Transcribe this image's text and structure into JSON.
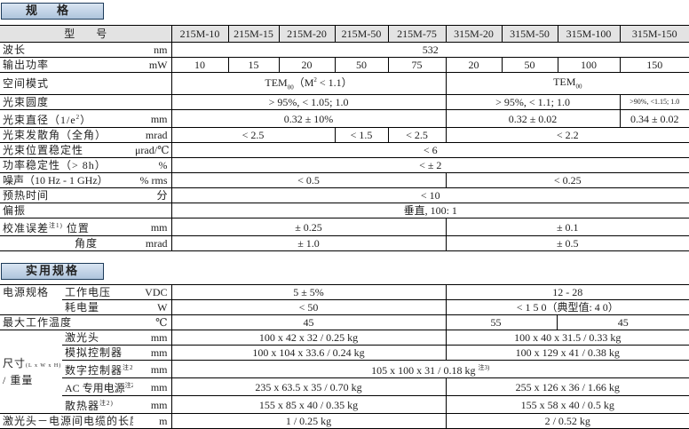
{
  "sections": {
    "spec": "规格",
    "practical": "实用规格"
  },
  "t1": {
    "header_label": "型　　号",
    "models": [
      "215M-10",
      "215M-15",
      "215M-20",
      "215M-50",
      "215M-75",
      "315M-20",
      "315M-50",
      "315M-100",
      "315M-150"
    ],
    "wavelength": {
      "label": "波长",
      "unit": "nm",
      "value": "532"
    },
    "power": {
      "label": "输出功率",
      "unit": "mW",
      "values": [
        "10",
        "15",
        "20",
        "50",
        "75",
        "20",
        "50",
        "100",
        "150"
      ]
    },
    "mode": {
      "label": "空间模式",
      "a_main": "TEM",
      "a_sub": "00",
      "a_rest": "（M",
      "a_sup": "2",
      "a_end": " < 1.1）",
      "b_main": "TEM",
      "b_sub": "00"
    },
    "roundness": {
      "label": "光束圆度",
      "a": "> 95%, < 1.05; 1.0",
      "b": "> 95%, < 1.1; 1.0",
      "c": ">90%, <1.15; 1.0"
    },
    "diameter": {
      "label": "光束直径（1/e",
      "sup": "2",
      "label_end": "）",
      "unit": "mm",
      "a": "0.32 ± 10%",
      "b": "0.32 ± 0.02",
      "c": "0.34 ± 0.02"
    },
    "divergence": {
      "label": "光束发散角（全角）",
      "unit": "mrad",
      "a": "< 2.5",
      "b": "< 1.5",
      "c": "< 2.5",
      "d": "< 2.2"
    },
    "pointing": {
      "label": "光束位置稳定性",
      "unit": "μrad/℃",
      "value": "< 6"
    },
    "stability": {
      "label": "功率稳定性（> 8h）",
      "unit": "%",
      "value": "< ± 2"
    },
    "noise": {
      "label": "噪声（10 Hz - 1 GHz）",
      "unit": "% rms",
      "a": "< 0.5",
      "b": "< 0.25"
    },
    "warmup": {
      "label": "预热时间",
      "unit": "分",
      "value": "< 10"
    },
    "polarization": {
      "label": "偏振",
      "value": "垂直, 100: 1"
    },
    "alignment": {
      "label": "校准误差",
      "note": "注1)",
      "pos_label": "位置",
      "pos_unit": "mm",
      "pos_a": "± 0.25",
      "pos_b": "± 0.1",
      "ang_label": "角度",
      "ang_unit": "mrad",
      "ang_a": "± 1.0",
      "ang_b": "± 0.5"
    }
  },
  "t2": {
    "power_supply": {
      "label": "电源规格",
      "voltage_label": "工作电压",
      "voltage_unit": "VDC",
      "voltage_a": "5 ± 5%",
      "voltage_b": "12 - 28",
      "consumption_label": "耗电量",
      "consumption_unit": "W",
      "consumption_a": "< 50",
      "consumption_b": "< 1 5 0（典型值: 4 0）"
    },
    "temp": {
      "label": "最大工作温度",
      "unit": "℃",
      "a": "45",
      "b": "55",
      "c": "45"
    },
    "size": {
      "label": "尺寸",
      "label_small": "(L x W x H)",
      "label2": "/ 重量",
      "head_label": "激光头",
      "head_unit": "mm",
      "head_a": "100 x 42 x 32 / 0.25 kg",
      "head_b": "100 x 40 x 31.5 / 0.33 kg",
      "analog_label": "模拟控制器",
      "analog_unit": "mm",
      "analog_a": "100 x 104 x 33.6 / 0.24 kg",
      "analog_b": "100 x 129 x 41 / 0.38 kg",
      "digital_label": "数字控制器",
      "digital_note": "注2)",
      "digital_unit": "mm",
      "digital_value": "105 x 100 x 31 / 0.18 kg",
      "digital_value_note": "注3)",
      "ac_label": "AC 专用电源",
      "ac_note": "注2)",
      "ac_unit": "mm",
      "ac_a": "235 x 63.5 x 35 / 0.70 kg",
      "ac_b": "255 x 126 x 36 / 1.66 kg",
      "heatsink_label": "散热器",
      "heatsink_note": "注2)",
      "heatsink_unit": "mm",
      "heatsink_a": "155 x 85 x 40 / 0.35 kg",
      "heatsink_b": "155 x 58 x 40 / 0.5 kg"
    },
    "cable": {
      "label": "激光头－电源间电缆的长度",
      "unit": "m",
      "a": "1 / 0.25 kg",
      "b": "2 / 0.52 kg"
    }
  }
}
